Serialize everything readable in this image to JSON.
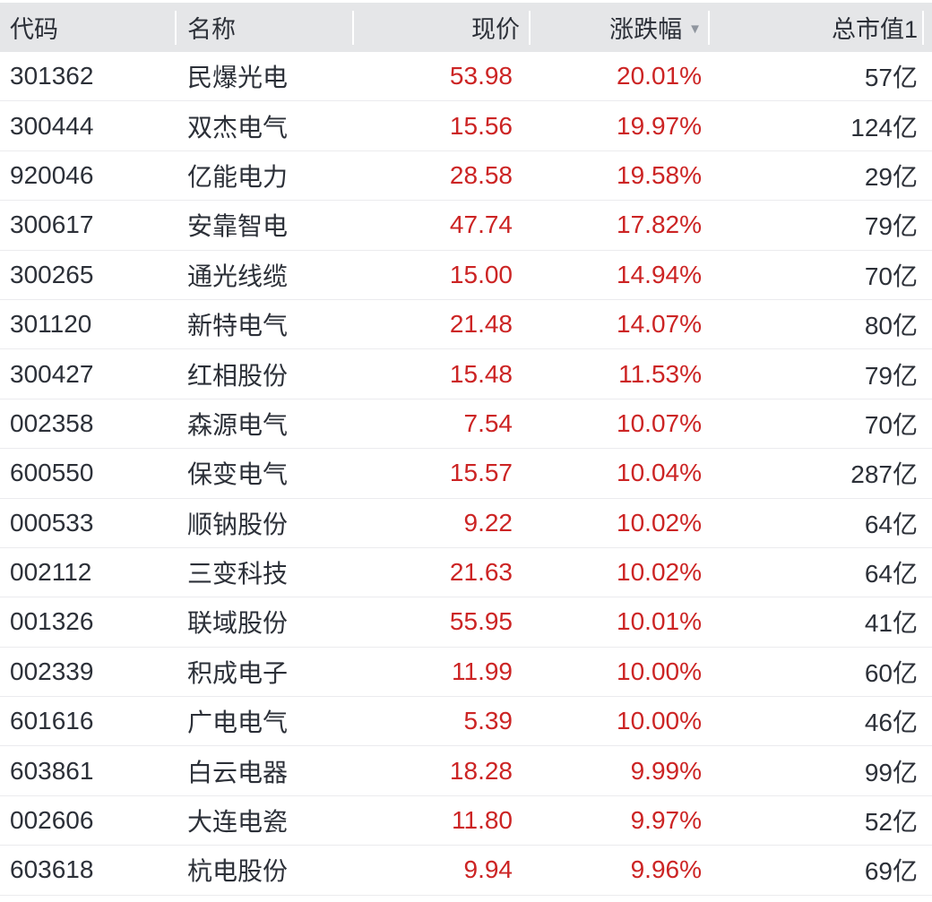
{
  "colors": {
    "red": "#cc2424",
    "header_bg": "#e5e6e8",
    "text_dark": "#2c3038",
    "separator": "#ebebee",
    "divider": "#ffffff",
    "sort_icon": "#8f959e"
  },
  "header": {
    "columns": [
      {
        "id": "code",
        "label": "代码"
      },
      {
        "id": "name",
        "label": "名称"
      },
      {
        "id": "price",
        "label": "现价"
      },
      {
        "id": "change",
        "label": "涨跌幅",
        "sort_icon": "▼",
        "sort_direction": "desc"
      },
      {
        "id": "market_cap",
        "label": "总市值1"
      }
    ]
  },
  "rows": [
    {
      "code": "301362",
      "name": "民爆光电",
      "price": "53.98",
      "change_pct": "20.01%",
      "market_cap": "57亿"
    },
    {
      "code": "300444",
      "name": "双杰电气",
      "price": "15.56",
      "change_pct": "19.97%",
      "market_cap": "124亿"
    },
    {
      "code": "920046",
      "name": "亿能电力",
      "price": "28.58",
      "change_pct": "19.58%",
      "market_cap": "29亿"
    },
    {
      "code": "300617",
      "name": "安靠智电",
      "price": "47.74",
      "change_pct": "17.82%",
      "market_cap": "79亿"
    },
    {
      "code": "300265",
      "name": "通光线缆",
      "price": "15.00",
      "change_pct": "14.94%",
      "market_cap": "70亿"
    },
    {
      "code": "301120",
      "name": "新特电气",
      "price": "21.48",
      "change_pct": "14.07%",
      "market_cap": "80亿"
    },
    {
      "code": "300427",
      "name": "红相股份",
      "price": "15.48",
      "change_pct": "11.53%",
      "market_cap": "79亿"
    },
    {
      "code": "002358",
      "name": "森源电气",
      "price": "7.54",
      "change_pct": "10.07%",
      "market_cap": "70亿"
    },
    {
      "code": "600550",
      "name": "保变电气",
      "price": "15.57",
      "change_pct": "10.04%",
      "market_cap": "287亿"
    },
    {
      "code": "000533",
      "name": "顺钠股份",
      "price": "9.22",
      "change_pct": "10.02%",
      "market_cap": "64亿"
    },
    {
      "code": "002112",
      "name": "三变科技",
      "price": "21.63",
      "change_pct": "10.02%",
      "market_cap": "64亿"
    },
    {
      "code": "001326",
      "name": "联域股份",
      "price": "55.95",
      "change_pct": "10.01%",
      "market_cap": "41亿"
    },
    {
      "code": "002339",
      "name": "积成电子",
      "price": "11.99",
      "change_pct": "10.00%",
      "market_cap": "60亿"
    },
    {
      "code": "601616",
      "name": "广电电气",
      "price": "5.39",
      "change_pct": "10.00%",
      "market_cap": "46亿"
    },
    {
      "code": "603861",
      "name": "白云电器",
      "price": "18.28",
      "change_pct": "9.99%",
      "market_cap": "99亿"
    },
    {
      "code": "002606",
      "name": "大连电瓷",
      "price": "11.80",
      "change_pct": "9.97%",
      "market_cap": "52亿"
    },
    {
      "code": "603618",
      "name": "杭电股份",
      "price": "9.94",
      "change_pct": "9.96%",
      "market_cap": "69亿"
    }
  ]
}
